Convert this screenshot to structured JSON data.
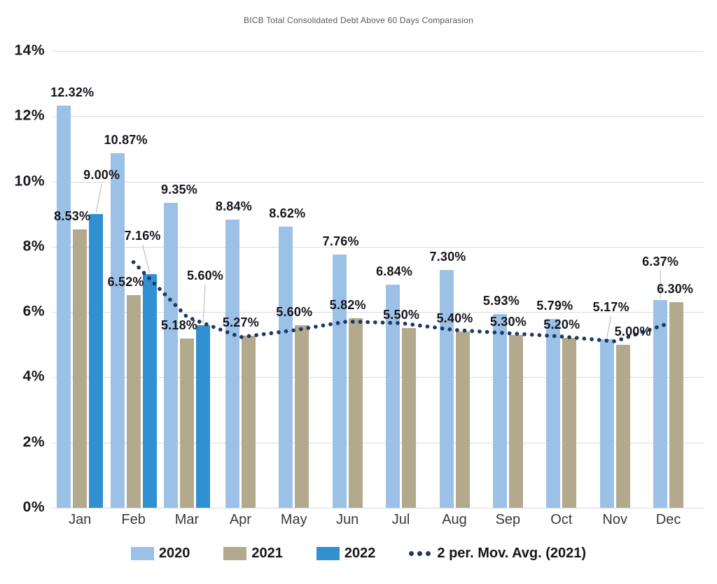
{
  "chart_data": {
    "type": "bar",
    "title": "BICB Total Consolidated Debt Above 60 Days Comparasion",
    "categories": [
      "Jan",
      "Feb",
      "Mar",
      "Apr",
      "May",
      "Jun",
      "Jul",
      "Aug",
      "Sep",
      "Oct",
      "Nov",
      "Dec"
    ],
    "series": [
      {
        "name": "2020",
        "color": "#9bc2e6",
        "values": [
          12.32,
          10.87,
          9.35,
          8.84,
          8.62,
          7.76,
          6.84,
          7.3,
          5.93,
          5.79,
          5.17,
          6.37
        ]
      },
      {
        "name": "2021",
        "color": "#b3a98c",
        "values": [
          8.53,
          6.52,
          5.18,
          5.27,
          5.6,
          5.82,
          5.5,
          5.4,
          5.3,
          5.2,
          5.0,
          6.3
        ]
      },
      {
        "name": "2022",
        "color": "#3190d2",
        "values": [
          9.0,
          7.16,
          5.6,
          null,
          null,
          null,
          null,
          null,
          null,
          null,
          null,
          null
        ]
      }
    ],
    "mov_avg": {
      "name": "2 per. Mov. Avg. (2021)",
      "color": "#1f3864",
      "values": [
        null,
        7.53,
        5.85,
        5.23,
        5.44,
        5.71,
        5.66,
        5.45,
        5.35,
        5.25,
        5.1,
        5.65
      ]
    },
    "data_labels": [
      {
        "c": "Jan",
        "s": "2020",
        "text": "12.32%"
      },
      {
        "c": "Jan",
        "s": "2021",
        "text": "8.53%"
      },
      {
        "c": "Jan",
        "s": "2022",
        "text": "9.00%",
        "callout": true,
        "dx": 8,
        "lift": 45
      },
      {
        "c": "Feb",
        "s": "2020",
        "text": "10.87%"
      },
      {
        "c": "Feb",
        "s": "2021",
        "text": "6.52%"
      },
      {
        "c": "Feb",
        "s": "2022",
        "text": "7.16%",
        "callout": true,
        "dx": -10,
        "lift": 44
      },
      {
        "c": "Mar",
        "s": "2020",
        "text": "9.35%"
      },
      {
        "c": "Mar",
        "s": "2021",
        "text": "5.18%"
      },
      {
        "c": "Mar",
        "s": "2022",
        "text": "5.60%",
        "callout": true,
        "dx": 3,
        "lift": 60
      },
      {
        "c": "Apr",
        "s": "2020",
        "text": "8.84%"
      },
      {
        "c": "Apr",
        "s": "2021",
        "text": "5.27%"
      },
      {
        "c": "May",
        "s": "2020",
        "text": "8.62%"
      },
      {
        "c": "May",
        "s": "2021",
        "text": "5.60%"
      },
      {
        "c": "Jun",
        "s": "2020",
        "text": "7.76%"
      },
      {
        "c": "Jun",
        "s": "2021",
        "text": "5.82%"
      },
      {
        "c": "Jul",
        "s": "2020",
        "text": "6.84%"
      },
      {
        "c": "Jul",
        "s": "2021",
        "text": "5.50%"
      },
      {
        "c": "Aug",
        "s": "2020",
        "text": "7.30%"
      },
      {
        "c": "Aug",
        "s": "2021",
        "text": "5.40%"
      },
      {
        "c": "Sep",
        "s": "2020",
        "text": "5.93%"
      },
      {
        "c": "Sep",
        "s": "2021",
        "text": "5.30%"
      },
      {
        "c": "Oct",
        "s": "2020",
        "text": "5.79%"
      },
      {
        "c": "Oct",
        "s": "2021",
        "text": "5.20%"
      },
      {
        "c": "Nov",
        "s": "2020",
        "text": "5.17%",
        "callout": true,
        "dx": 6,
        "lift": 35
      },
      {
        "c": "Nov",
        "s": "2021",
        "text": "5.00%",
        "dx": 14
      },
      {
        "c": "Dec",
        "s": "2020",
        "text": "6.37%",
        "callout": true,
        "dx": 0,
        "lift": 44
      },
      {
        "c": "Dec",
        "s": "2021",
        "text": "6.30%",
        "dx": -2
      }
    ],
    "y_axis": {
      "min": 0,
      "max": 14,
      "step": 2,
      "tick_labels": [
        "0%",
        "2%",
        "4%",
        "6%",
        "8%",
        "10%",
        "12%",
        "14%"
      ]
    },
    "grid": true,
    "legend_position": "bottom",
    "colors": {
      "gridline": "#d9d9d9",
      "label_text": "#15151d",
      "title_text": "#595959",
      "callout_line": "#c0c0c0"
    }
  }
}
